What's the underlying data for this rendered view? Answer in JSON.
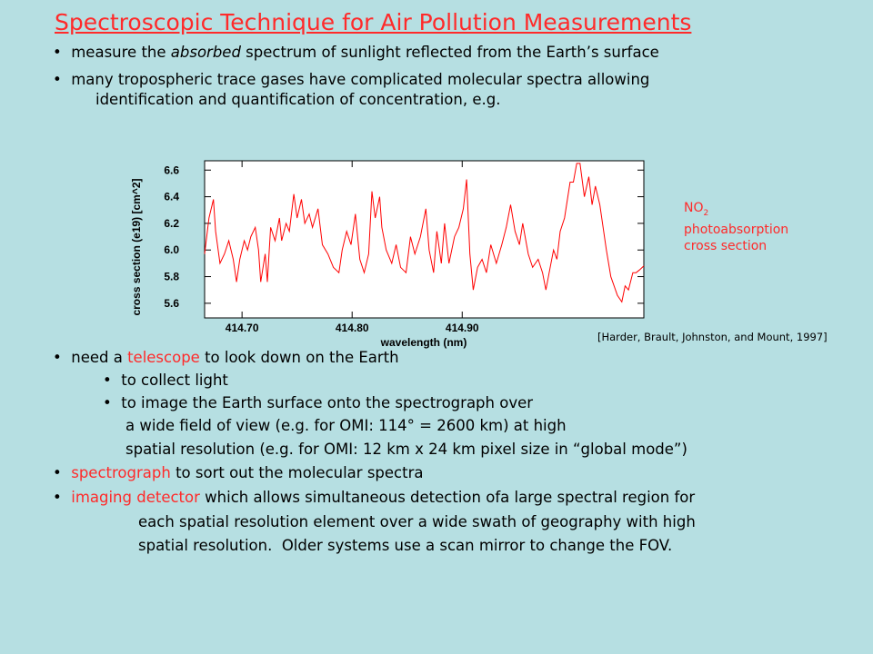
{
  "title": "Spectroscopic Technique for Air Pollution Measurements",
  "intro": [
    [
      "measure the ",
      "absorbed",
      " spectrum of sunlight reflected from the Earth’s surface"
    ],
    [
      "many tropospheric trace gases have complicated molecular spectra allowing"
    ],
    [
      "identification and quantification of concentration, e.g."
    ]
  ],
  "chart_data": {
    "type": "line",
    "color": "#ff0000",
    "x": [
      414.666,
      414.67,
      414.674,
      414.676,
      414.68,
      414.684,
      414.688,
      414.692,
      414.695,
      414.698,
      414.702,
      414.705,
      414.708,
      414.712,
      414.715,
      414.717,
      414.721,
      414.723,
      414.726,
      414.73,
      414.734,
      414.736,
      414.74,
      414.743,
      414.747,
      414.75,
      414.754,
      414.757,
      414.761,
      414.764,
      414.769,
      414.773,
      414.778,
      414.783,
      414.788,
      414.791,
      414.795,
      414.799,
      414.803,
      414.807,
      414.811,
      414.815,
      414.818,
      414.821,
      414.825,
      414.827,
      414.831,
      414.836,
      414.84,
      414.844,
      414.849,
      414.853,
      414.857,
      414.862,
      414.867,
      414.87,
      414.874,
      414.877,
      414.881,
      414.884,
      414.888,
      414.893,
      414.897,
      414.901,
      414.904,
      414.907,
      414.91,
      414.914,
      414.918,
      414.922,
      414.926,
      414.931,
      414.936,
      414.94,
      414.944,
      414.948,
      414.952,
      414.955,
      414.96,
      414.964,
      414.969,
      414.973,
      414.976,
      414.979,
      414.983,
      414.986,
      414.989,
      414.993,
      414.998,
      415.001,
      415.004,
      415.007,
      415.011,
      415.015,
      415.018,
      415.021,
      415.025,
      415.028,
      415.031,
      415.035,
      415.038,
      415.041,
      415.045,
      415.048,
      415.051,
      415.055,
      415.058,
      415.061,
      415.065
    ],
    "values": [
      5.97,
      6.24,
      6.38,
      6.14,
      5.9,
      5.97,
      6.07,
      5.93,
      5.76,
      5.93,
      6.07,
      6.0,
      6.1,
      6.17,
      6.0,
      5.76,
      5.97,
      5.76,
      6.17,
      6.07,
      6.24,
      6.07,
      6.2,
      6.14,
      6.42,
      6.24,
      6.38,
      6.2,
      6.27,
      6.17,
      6.31,
      6.04,
      5.97,
      5.87,
      5.83,
      6.0,
      6.14,
      6.04,
      6.27,
      5.93,
      5.83,
      5.97,
      6.44,
      6.24,
      6.4,
      6.17,
      6.0,
      5.9,
      6.04,
      5.87,
      5.83,
      6.1,
      5.97,
      6.1,
      6.31,
      6.0,
      5.83,
      6.14,
      5.9,
      6.2,
      5.9,
      6.1,
      6.17,
      6.31,
      6.53,
      5.97,
      5.7,
      5.87,
      5.93,
      5.83,
      6.04,
      5.9,
      6.04,
      6.17,
      6.34,
      6.14,
      6.04,
      6.2,
      5.97,
      5.87,
      5.93,
      5.83,
      5.7,
      5.83,
      6.0,
      5.93,
      6.14,
      6.24,
      6.51,
      6.51,
      6.65,
      6.65,
      6.4,
      6.55,
      6.34,
      6.48,
      6.34,
      6.17,
      6.0,
      5.8,
      5.73,
      5.66,
      5.61,
      5.73,
      5.7,
      5.83,
      5.83,
      5.85,
      5.88
    ],
    "xlim": [
      414.666,
      415.065
    ],
    "ylim": [
      5.49,
      6.67
    ],
    "xticks": [
      {
        "value": 414.7,
        "label": "414.70"
      },
      {
        "value": 414.8,
        "label": "414.80"
      },
      {
        "value": 414.9,
        "label": "414.90"
      }
    ],
    "yticks": [
      5.6,
      5.8,
      {
        "value": 6,
        "label": "6.0"
      },
      6.2,
      6.4,
      6.6
    ],
    "xlabel": "wavelength (nm)",
    "ylabel": "cross section (e19) [cm^2]"
  },
  "annotation": {
    "species": "NO",
    "subscript": "2",
    "lines": [
      "photoabsorption",
      "cross section"
    ]
  },
  "citation": "[Harder, Brault, Johnston, and Mount, 1997]",
  "details": [
    [
      "need a ",
      "telescope",
      " to look down on the Earth"
    ],
    [
      "to collect light"
    ],
    [
      "to image the Earth surface onto the spectrograph over"
    ],
    [
      "a wide field of view (e.g. for OMI: 114° = 2600 km) at high"
    ],
    [
      "spatial resolution (e.g. for OMI: 12 km x 24 km pixel size in “global mode”)"
    ],
    [
      "spectrograph",
      " to sort out the molecular spectra"
    ],
    [
      "imaging detector",
      " which allows simultaneous detection ofa large spectral region for"
    ],
    [
      "each spatial resolution element over a wide swath of geography with high"
    ],
    [
      "spatial resolution.  Older systems use a scan mirror to change the FOV."
    ]
  ]
}
